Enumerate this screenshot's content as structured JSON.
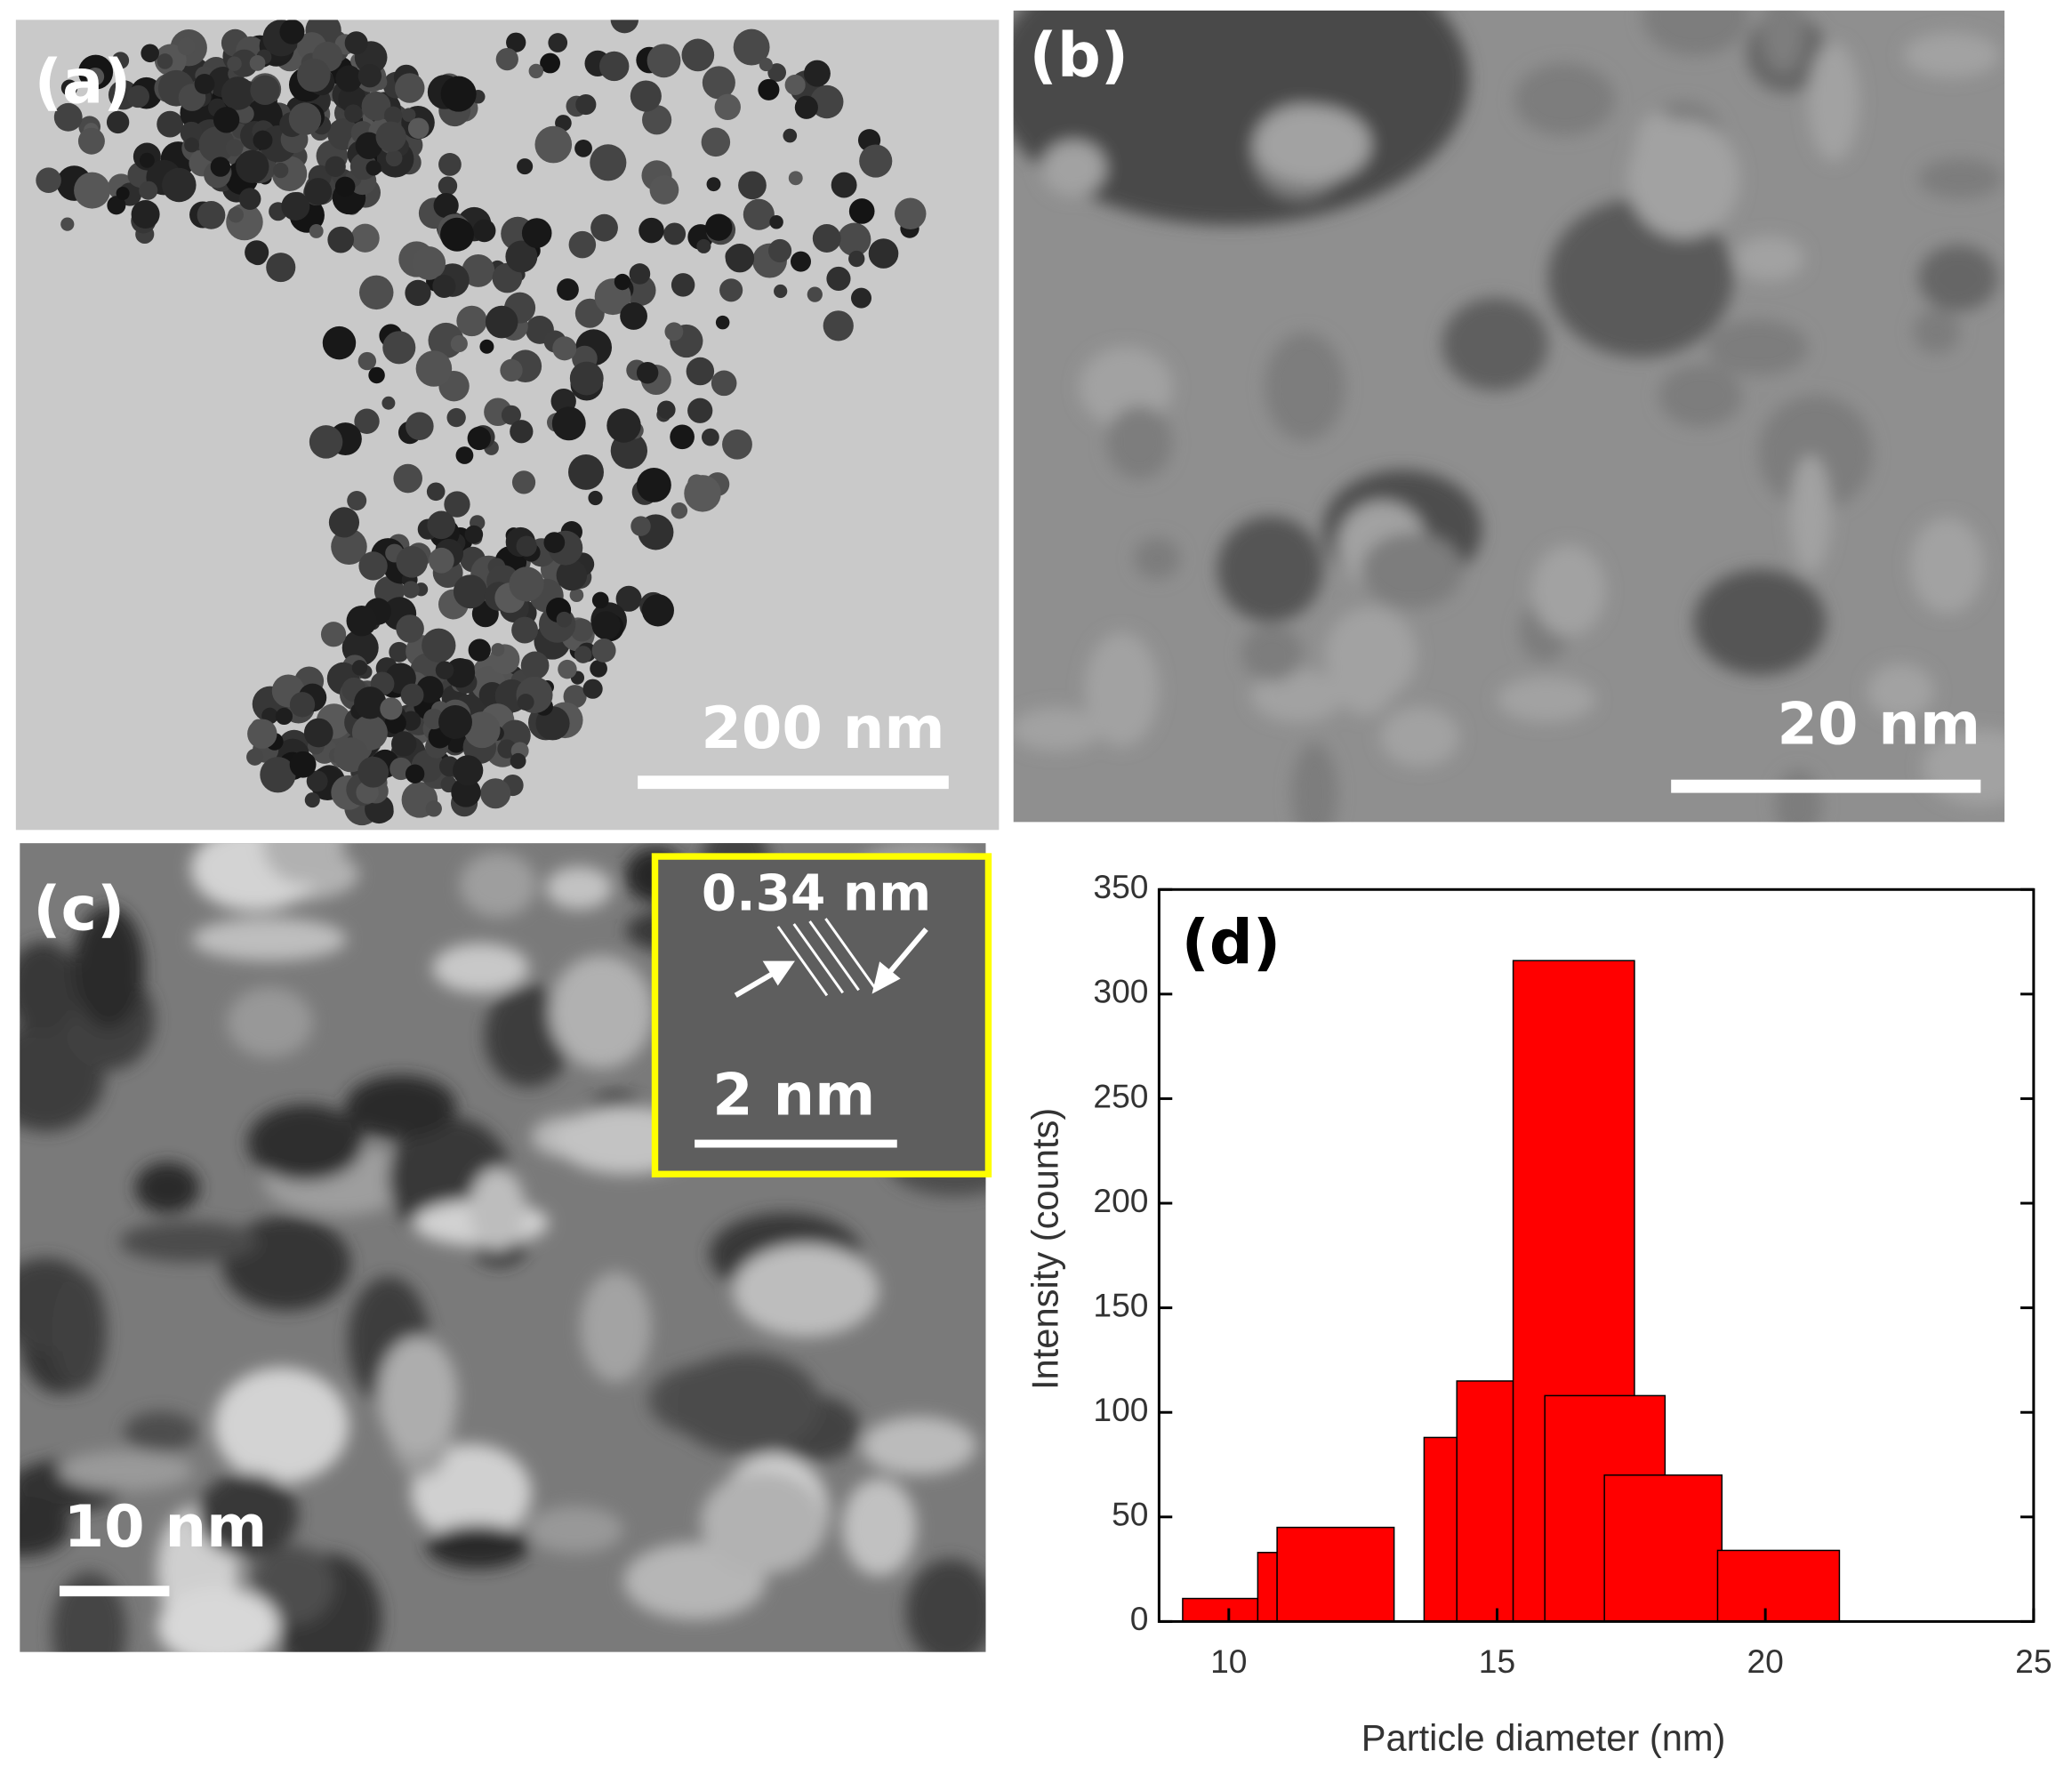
{
  "panels": {
    "a": {
      "label": "(a)",
      "scale": "200 nm"
    },
    "b": {
      "label": "(b)",
      "scale": "20 nm"
    },
    "c": {
      "label": "(c)",
      "scale": "10 nm",
      "inset_spacing": "0.34 nm",
      "inset_scale": "2 nm"
    }
  },
  "chart_data": {
    "type": "bar",
    "annotation": "(d)",
    "x_label": "Particle diameter (nm)",
    "y_label": "Intensity (counts)",
    "x_start": [
      9.14,
      10.54,
      10.9,
      13.64,
      14.25,
      15.3,
      15.89,
      17.0,
      19.11
    ],
    "x_end": [
      10.54,
      10.9,
      13.08,
      14.25,
      15.3,
      17.56,
      18.13,
      19.19,
      21.38
    ],
    "values": [
      11,
      33,
      45,
      88,
      115,
      316,
      108,
      70,
      34
    ],
    "color": "#ff0000",
    "xlim": [
      8.7,
      25
    ],
    "xticks": [
      10,
      15,
      20,
      25
    ],
    "ylim": [
      0,
      350
    ],
    "yticks": [
      0,
      50,
      100,
      150,
      200,
      250,
      300,
      350
    ]
  }
}
